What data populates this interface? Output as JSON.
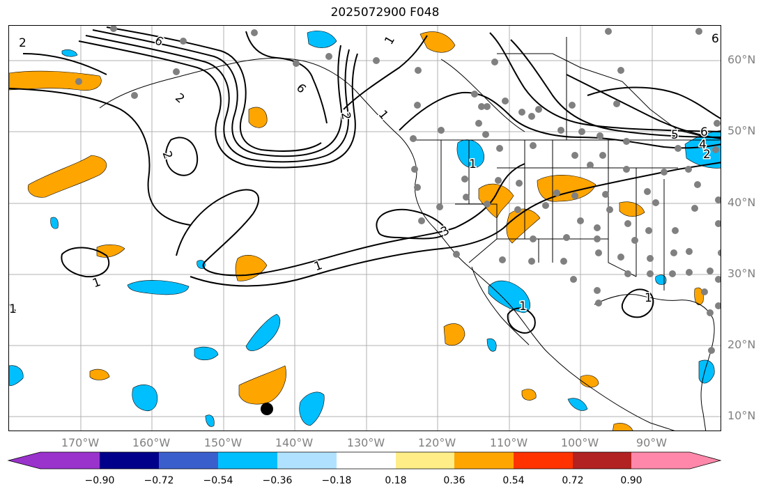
{
  "title": "2025072900 F048",
  "lat_labels": [
    "60°N",
    "50°N",
    "40°N",
    "30°N",
    "20°N",
    "10°N"
  ],
  "lon_labels": [
    "170°W",
    "160°W",
    "150°W",
    "140°W",
    "130°W",
    "120°W",
    "110°W",
    "100°W",
    "90°W"
  ],
  "contour_labels": [
    "2",
    "6",
    "6",
    "2",
    "2",
    "1",
    "1",
    "2",
    "1",
    "3",
    "1",
    "1",
    "5",
    "6",
    "4",
    "2",
    "1",
    "1",
    "1",
    "6"
  ],
  "colorbar": {
    "tick_labels": [
      "−0.90",
      "−0.72",
      "−0.54",
      "−0.36",
      "−0.18",
      "0.18",
      "0.36",
      "0.54",
      "0.72",
      "0.90"
    ],
    "colors": [
      "#9933cc",
      "#00008b",
      "#3a5fcd",
      "#00bfff",
      "#b0e2ff",
      "#ffffff",
      "#ffee88",
      "#ffa500",
      "#ff3300",
      "#b22222",
      "#ff88aa"
    ]
  }
}
